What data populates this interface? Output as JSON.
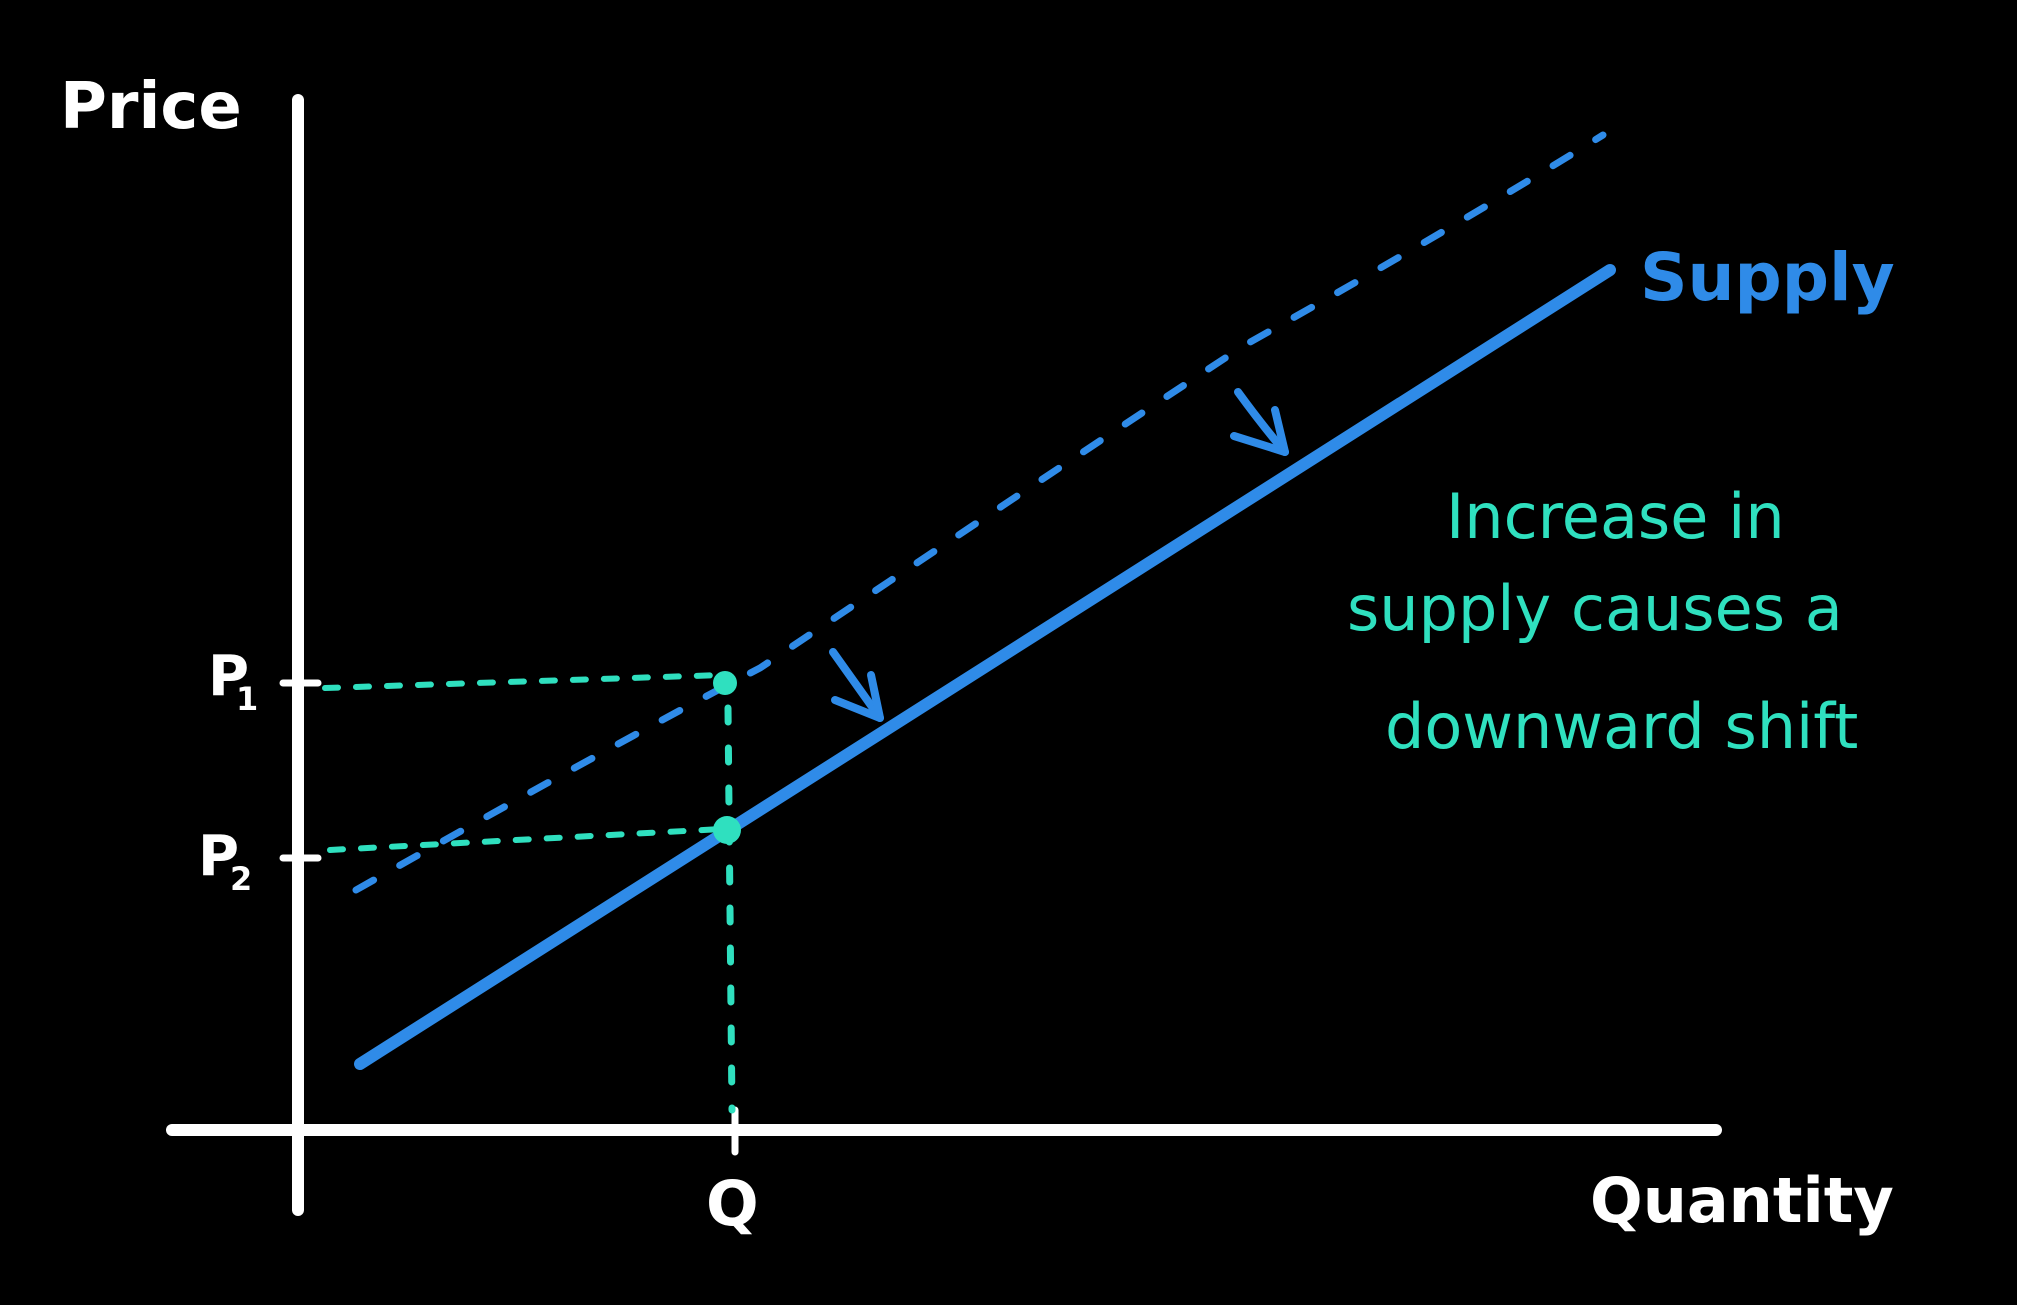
{
  "colors": {
    "background": "#000000",
    "axis": "#ffffff",
    "supply": "#2f8be8",
    "guide": "#2fe0bf"
  },
  "labels": {
    "y_axis": "Price",
    "x_axis": "Quantity",
    "p1": "P",
    "p1_sub": "1",
    "p2": "P",
    "p2_sub": "2",
    "q": "Q",
    "curve": "Supply",
    "note_line1": "Increase in",
    "note_line2": "supply causes a",
    "note_line3": "downward shift"
  }
}
